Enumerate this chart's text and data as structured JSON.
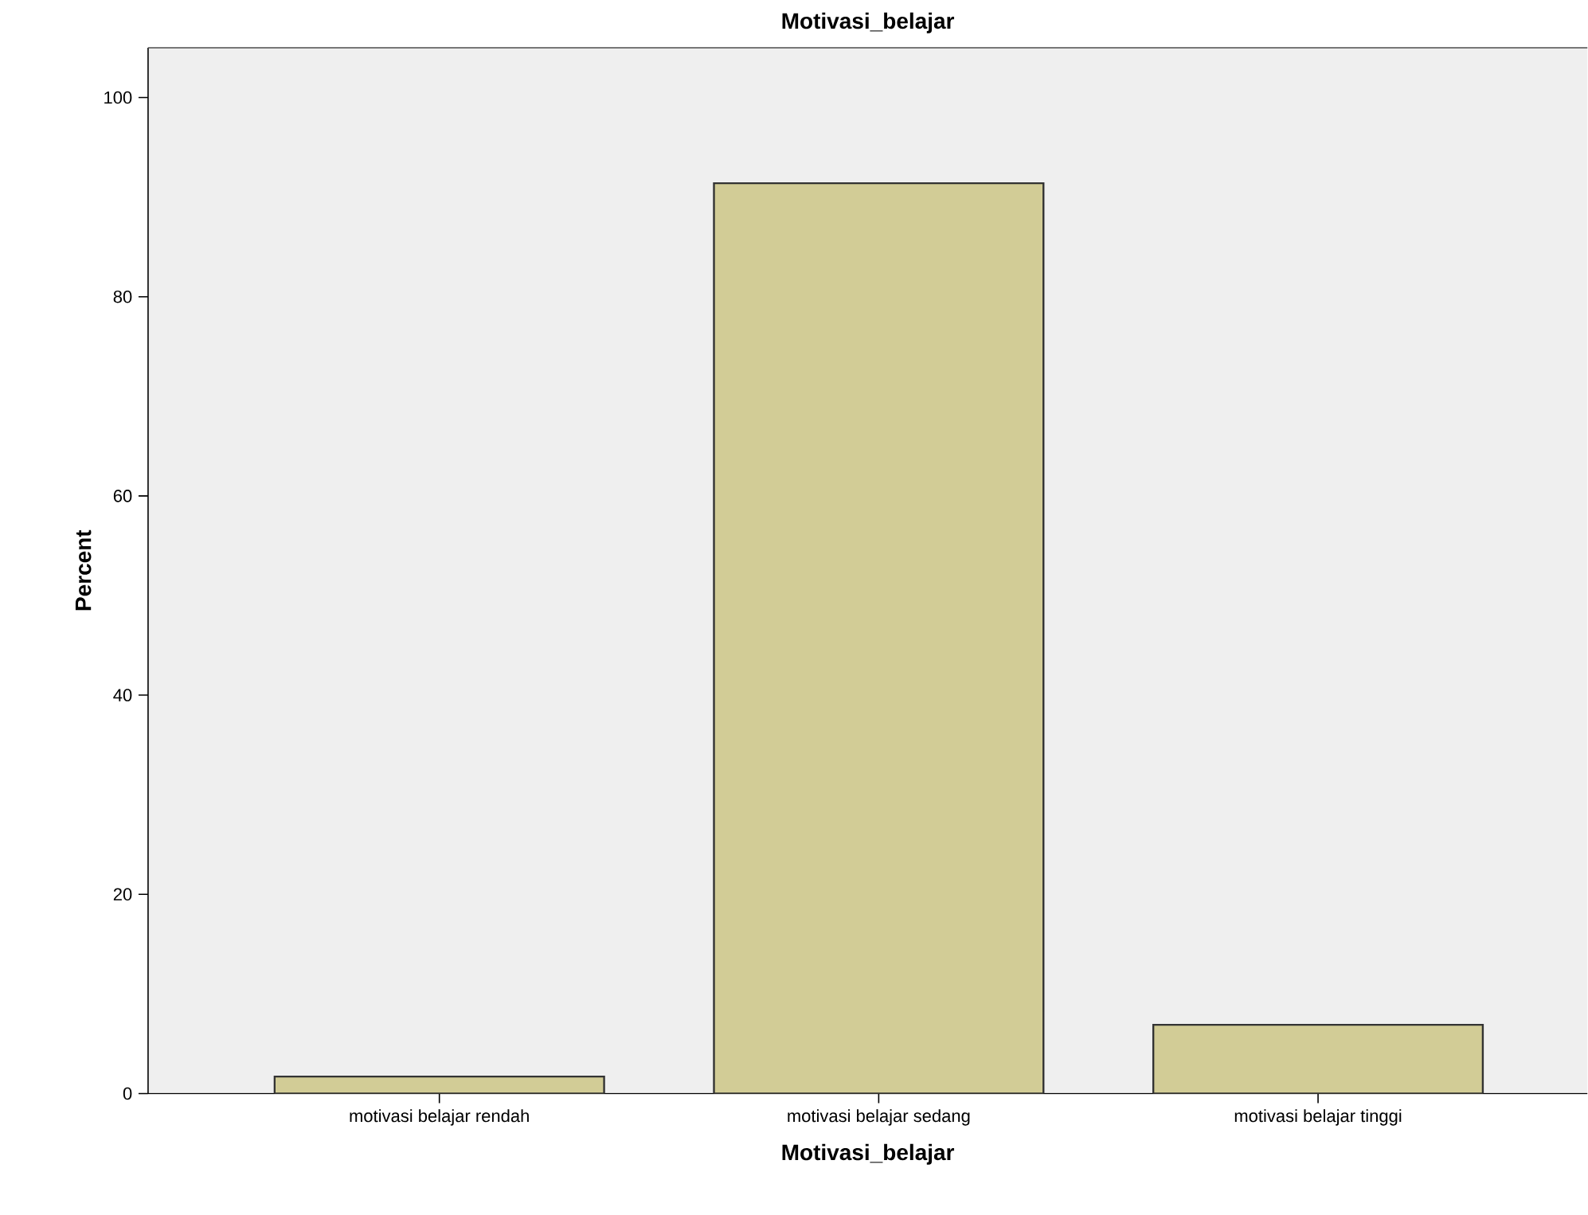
{
  "chart_data": {
    "type": "bar",
    "title": "Motivasi_belajar",
    "xlabel": "Motivasi_belajar",
    "ylabel": "Percent",
    "categories": [
      "motivasi belajar rendah",
      "motivasi belajar sedang",
      "motivasi belajar tinggi"
    ],
    "values": [
      1.7,
      91.4,
      6.9
    ],
    "color": "#d2cc96",
    "ylim": [
      0,
      105
    ],
    "yticks": [
      0,
      20,
      40,
      60,
      80,
      100
    ],
    "grid": false
  }
}
